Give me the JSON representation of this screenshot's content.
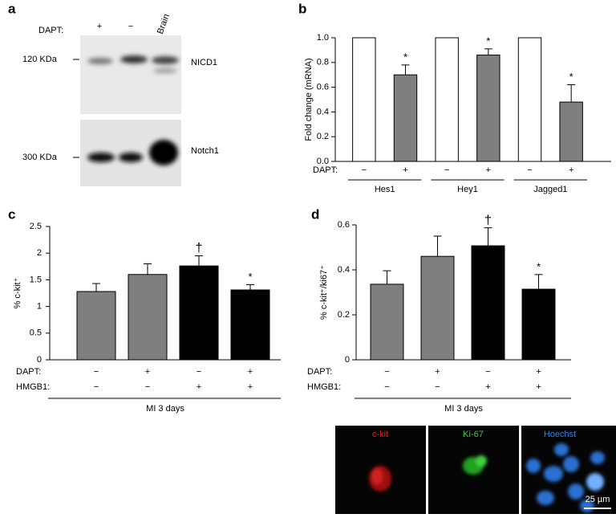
{
  "blot": {
    "panel": "a",
    "treatment_label": "DAPT:",
    "lanes": [
      "+",
      "−",
      "Brain"
    ],
    "upper": {
      "marker": "120 KDa",
      "protein": "NICD1"
    },
    "lower": {
      "marker": "300 KDa",
      "protein": "Notch1"
    }
  },
  "chart_data": [
    {
      "type": "bar",
      "panel": "b",
      "y_label": "Fold change (mRNA)",
      "rows": [
        {
          "label": "DAPT:",
          "values": [
            "−",
            "+",
            "−",
            "+",
            "−",
            "+"
          ]
        }
      ],
      "groups": [
        "Hes1",
        "Hey1",
        "Jagged1"
      ],
      "values": [
        1.0,
        0.7,
        1.0,
        0.86,
        1.0,
        0.48
      ],
      "errors": [
        null,
        0.08,
        null,
        0.05,
        null,
        0.14
      ],
      "annotations": [
        null,
        "*",
        null,
        "*",
        null,
        "*"
      ],
      "colors": [
        "#ffffff",
        "#7f7f7f",
        "#ffffff",
        "#7f7f7f",
        "#ffffff",
        "#7f7f7f"
      ],
      "ylim": [
        0,
        1.0
      ],
      "yticks": [
        {
          "value": 0,
          "label": "0.0"
        },
        0.2,
        0.4,
        0.6,
        0.8,
        {
          "value": 1.0,
          "label": "1.0"
        }
      ]
    },
    {
      "type": "bar",
      "panel": "c",
      "y_label": "% c-kit⁺",
      "rows": [
        {
          "label": "DAPT:",
          "values": [
            "−",
            "+",
            "−",
            "+"
          ]
        },
        {
          "label": "HMGB1:",
          "values": [
            "−",
            "−",
            "+",
            "+"
          ]
        }
      ],
      "footer": "MI 3 days",
      "values": [
        1.28,
        1.6,
        1.76,
        1.31
      ],
      "errors": [
        0.15,
        0.2,
        0.19,
        0.1
      ],
      "annotations": [
        null,
        null,
        "†",
        "*"
      ],
      "colors": [
        "#7f7f7f",
        "#7f7f7f",
        "#000000",
        "#000000"
      ],
      "ylim": [
        0,
        2.5
      ],
      "yticks": [
        0,
        0.5,
        1,
        1.5,
        2,
        2.5
      ]
    },
    {
      "type": "bar",
      "panel": "d",
      "y_label": "% c-kit⁺/ki67⁺",
      "rows": [
        {
          "label": "DAPT:",
          "values": [
            "−",
            "+",
            "−",
            "+"
          ]
        },
        {
          "label": "HMGB1:",
          "values": [
            "−",
            "−",
            "+",
            "+"
          ]
        }
      ],
      "footer": "MI 3 days",
      "values": [
        0.336,
        0.46,
        0.507,
        0.314
      ],
      "errors": [
        0.06,
        0.09,
        0.08,
        0.065
      ],
      "annotations": [
        null,
        null,
        "†",
        "*"
      ],
      "colors": [
        "#7f7f7f",
        "#7f7f7f",
        "#000000",
        "#000000"
      ],
      "ylim": [
        0,
        0.6
      ],
      "yticks": [
        0,
        0.2,
        0.4,
        0.6
      ]
    }
  ],
  "micrograph": {
    "channels": [
      "c-kit",
      "Ki-67",
      "Hoechst"
    ],
    "scale_bar": "25 µm"
  }
}
